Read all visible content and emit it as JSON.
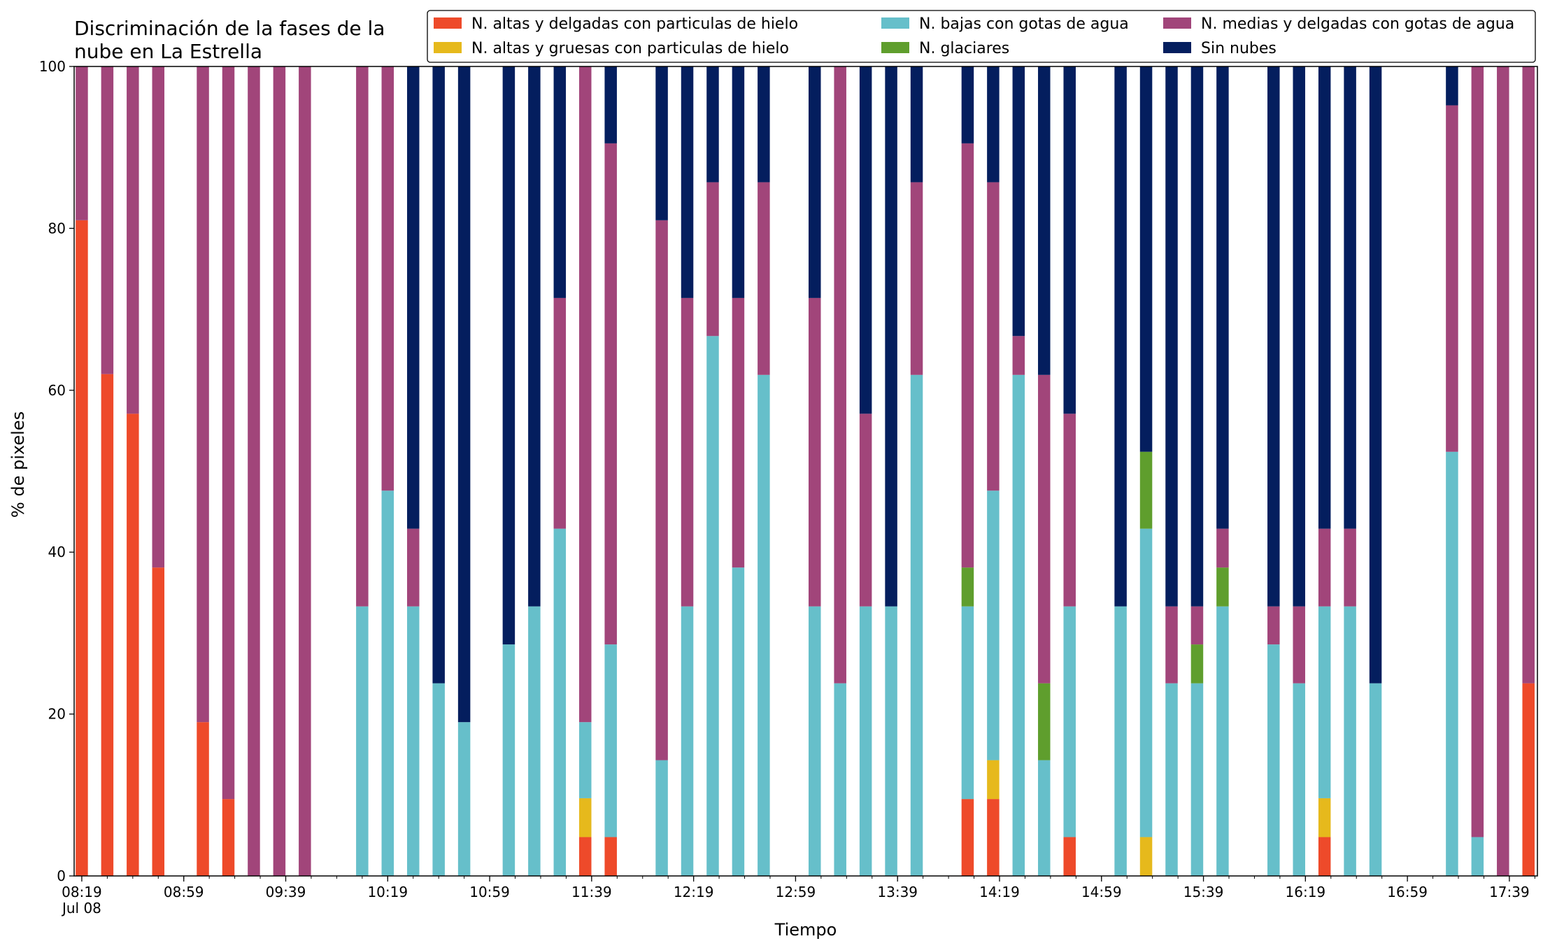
{
  "chart_data": {
    "type": "bar",
    "stacked": true,
    "title": "Discriminación de la fases de la\nnube en La Estrella",
    "xlabel": "Tiempo",
    "ylabel": "% de pixeles",
    "ylim": [
      0,
      100
    ],
    "yticks": [
      0,
      20,
      40,
      60,
      80,
      100
    ],
    "grid": false,
    "legend_position": "top-right",
    "x_unit": "minutes of day, 2019-07-08",
    "xlim": [
      496,
      1070
    ],
    "xticks": [
      {
        "x": 499,
        "label": "08:19",
        "sublabel": "Jul 08"
      },
      {
        "x": 539,
        "label": "08:59"
      },
      {
        "x": 579,
        "label": "09:39"
      },
      {
        "x": 619,
        "label": "10:19"
      },
      {
        "x": 659,
        "label": "10:59"
      },
      {
        "x": 699,
        "label": "11:39"
      },
      {
        "x": 739,
        "label": "12:19"
      },
      {
        "x": 779,
        "label": "12:59"
      },
      {
        "x": 819,
        "label": "13:39"
      },
      {
        "x": 859,
        "label": "14:19"
      },
      {
        "x": 899,
        "label": "14:59"
      },
      {
        "x": 939,
        "label": "15:39"
      },
      {
        "x": 979,
        "label": "16:19"
      },
      {
        "x": 1019,
        "label": "16:59"
      },
      {
        "x": 1059,
        "label": "17:39"
      }
    ],
    "minor_tick_step": 10,
    "series": [
      {
        "name": "N. altas y delgadas con particulas de hielo",
        "color": "#ee4a2a"
      },
      {
        "name": "N. altas y gruesas con particulas de hielo",
        "color": "#e6b91c"
      },
      {
        "name": "N. bajas con gotas de agua",
        "color": "#66bfca"
      },
      {
        "name": "N. glaciares",
        "color": "#5f9e2d"
      },
      {
        "name": "N. medias y delgadas con gotas de agua",
        "color": "#a1457a"
      },
      {
        "name": "Sin nubes",
        "color": "#041e5e"
      }
    ],
    "bars": [
      {
        "x": 499,
        "values": [
          81,
          0,
          0,
          0,
          19,
          0
        ]
      },
      {
        "x": 509,
        "values": [
          62,
          0,
          0,
          0,
          38,
          0
        ]
      },
      {
        "x": 519,
        "values": [
          57.1,
          0,
          0,
          0,
          42.9,
          0
        ]
      },
      {
        "x": 529,
        "values": [
          38.1,
          0,
          0,
          0,
          61.9,
          0
        ]
      },
      {
        "x": 546.5,
        "values": [
          19,
          0,
          0,
          0,
          81,
          0
        ]
      },
      {
        "x": 556.5,
        "values": [
          9.5,
          0,
          0,
          0,
          90.5,
          0
        ]
      },
      {
        "x": 566.5,
        "values": [
          0,
          0,
          0,
          0,
          100,
          0
        ]
      },
      {
        "x": 576.5,
        "values": [
          0,
          0,
          0,
          0,
          100,
          0
        ]
      },
      {
        "x": 586.5,
        "values": [
          0,
          0,
          0,
          0,
          100,
          0
        ]
      },
      {
        "x": 609,
        "values": [
          0,
          0,
          33.3,
          0,
          66.7,
          0
        ]
      },
      {
        "x": 619,
        "values": [
          0,
          0,
          47.6,
          0,
          52.4,
          0
        ]
      },
      {
        "x": 629,
        "values": [
          0,
          0,
          33.3,
          0,
          9.6,
          57.1
        ]
      },
      {
        "x": 639,
        "values": [
          0,
          0,
          23.8,
          0,
          0,
          76.2
        ]
      },
      {
        "x": 649,
        "values": [
          0,
          0,
          19,
          0,
          0,
          81
        ]
      },
      {
        "x": 666.5,
        "values": [
          0,
          0,
          28.6,
          0,
          0,
          71.4
        ]
      },
      {
        "x": 676.5,
        "values": [
          0,
          0,
          33.3,
          0,
          0,
          66.7
        ]
      },
      {
        "x": 686.5,
        "values": [
          0,
          0,
          42.9,
          0,
          28.5,
          28.6
        ]
      },
      {
        "x": 696.5,
        "values": [
          4.8,
          4.8,
          9.4,
          0,
          81,
          0
        ]
      },
      {
        "x": 706.5,
        "values": [
          4.8,
          0,
          23.8,
          0,
          61.9,
          9.5
        ]
      },
      {
        "x": 726.5,
        "values": [
          0,
          0,
          14.3,
          0,
          66.7,
          19
        ]
      },
      {
        "x": 736.5,
        "values": [
          0,
          0,
          33.3,
          0,
          38.1,
          28.6
        ]
      },
      {
        "x": 746.5,
        "values": [
          0,
          0,
          66.7,
          0,
          19,
          14.3
        ]
      },
      {
        "x": 756.5,
        "values": [
          0,
          0,
          38.1,
          0,
          33.3,
          28.6
        ]
      },
      {
        "x": 766.5,
        "values": [
          0,
          0,
          61.9,
          0,
          23.8,
          14.3
        ]
      },
      {
        "x": 786.5,
        "values": [
          0,
          0,
          33.3,
          0,
          38.1,
          28.6
        ]
      },
      {
        "x": 796.5,
        "values": [
          0,
          0,
          23.8,
          0,
          76.2,
          0
        ]
      },
      {
        "x": 806.5,
        "values": [
          0,
          0,
          33.3,
          0,
          23.8,
          42.9
        ]
      },
      {
        "x": 816.5,
        "values": [
          0,
          0,
          33.3,
          0,
          0,
          66.7
        ]
      },
      {
        "x": 826.5,
        "values": [
          0,
          0,
          61.9,
          0,
          23.8,
          14.3
        ]
      },
      {
        "x": 846.5,
        "values": [
          9.5,
          0,
          23.8,
          4.8,
          52.4,
          9.5
        ]
      },
      {
        "x": 856.5,
        "values": [
          9.5,
          4.8,
          33.3,
          0,
          38.1,
          14.3
        ]
      },
      {
        "x": 866.5,
        "values": [
          0,
          0,
          61.9,
          0,
          4.8,
          33.3
        ]
      },
      {
        "x": 876.5,
        "values": [
          0,
          0,
          14.3,
          9.5,
          38.1,
          38.1
        ]
      },
      {
        "x": 886.5,
        "values": [
          4.8,
          0,
          28.5,
          0,
          23.8,
          42.9
        ]
      },
      {
        "x": 906.5,
        "values": [
          0,
          0,
          33.3,
          0,
          0,
          66.7
        ]
      },
      {
        "x": 916.5,
        "values": [
          0,
          4.8,
          38.1,
          9.5,
          0,
          47.6
        ]
      },
      {
        "x": 926.5,
        "values": [
          0,
          0,
          23.8,
          0,
          9.5,
          66.7
        ]
      },
      {
        "x": 936.5,
        "values": [
          0,
          0,
          23.8,
          4.8,
          4.7,
          66.7
        ]
      },
      {
        "x": 946.5,
        "values": [
          0,
          0,
          33.3,
          4.8,
          4.8,
          57.1
        ]
      },
      {
        "x": 966.5,
        "values": [
          0,
          0,
          28.6,
          0,
          4.7,
          66.7
        ]
      },
      {
        "x": 976.5,
        "values": [
          0,
          0,
          23.8,
          0,
          9.5,
          66.7
        ]
      },
      {
        "x": 986.5,
        "values": [
          4.8,
          4.8,
          23.7,
          0,
          9.6,
          57.1
        ]
      },
      {
        "x": 996.5,
        "values": [
          0,
          0,
          33.3,
          0,
          9.6,
          57.1
        ]
      },
      {
        "x": 1006.5,
        "values": [
          0,
          0,
          23.8,
          0,
          0,
          76.2
        ]
      },
      {
        "x": 1036.5,
        "values": [
          0,
          0,
          52.4,
          0,
          42.8,
          4.8
        ]
      },
      {
        "x": 1046.5,
        "values": [
          0,
          0,
          4.8,
          0,
          95.2,
          0
        ]
      },
      {
        "x": 1056.5,
        "values": [
          0,
          0,
          0,
          0,
          100,
          0
        ]
      },
      {
        "x": 1066.5,
        "values": [
          23.8,
          0,
          0,
          0,
          76.2,
          0
        ]
      }
    ]
  }
}
